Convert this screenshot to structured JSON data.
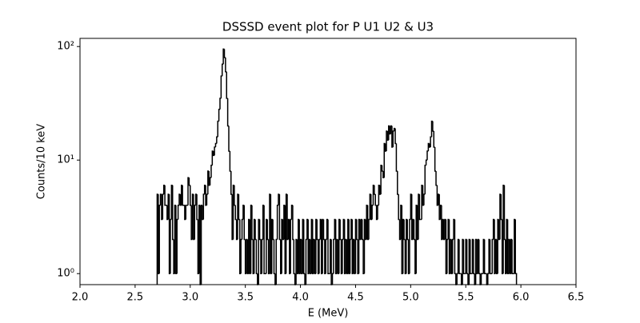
{
  "chart_data": {
    "type": "histogram",
    "title": "DSSSD event plot for P U1 U2 & U3",
    "xlabel": "E (MeV)",
    "ylabel": "Counts/10 keV",
    "color": "#000000",
    "log_y": true,
    "xlim": [
      2.0,
      6.5
    ],
    "xticks": [
      {
        "value": 2,
        "label": "2.0"
      },
      2.5,
      {
        "value": 3,
        "label": "3.0"
      },
      3.5,
      {
        "value": 4,
        "label": "4.0"
      },
      4.5,
      {
        "value": 5,
        "label": "5.0"
      },
      5.5,
      {
        "value": 6,
        "label": "6.0"
      },
      6.5
    ],
    "ylim": [
      0.8,
      118
    ],
    "yticks": [
      {
        "value": 1,
        "label": "10⁰"
      },
      {
        "value": 10,
        "label": "10¹"
      },
      {
        "value": 100,
        "label": "10²"
      }
    ],
    "bins": [
      2.7,
      2.71,
      2.72,
      2.73,
      2.74,
      2.75,
      2.76,
      2.77,
      2.78,
      2.79,
      2.8,
      2.81,
      2.82,
      2.83,
      2.84,
      2.85,
      2.86,
      2.87,
      2.88,
      2.89,
      2.9,
      2.91,
      2.92,
      2.93,
      2.94,
      2.95,
      2.96,
      2.97,
      2.98,
      2.99,
      3,
      3.01,
      3.02,
      3.03,
      3.04,
      3.05,
      3.06,
      3.07,
      3.08,
      3.09,
      3.1,
      3.11,
      3.12,
      3.13,
      3.14,
      3.15,
      3.16,
      3.17,
      3.18,
      3.19,
      3.2,
      3.21,
      3.22,
      3.23,
      3.24,
      3.25,
      3.26,
      3.27,
      3.28,
      3.29,
      3.3,
      3.31,
      3.32,
      3.33,
      3.34,
      3.35,
      3.36,
      3.37,
      3.38,
      3.39,
      3.4,
      3.41,
      3.42,
      3.43,
      3.44,
      3.45,
      3.46,
      3.47,
      3.48,
      3.49,
      3.5,
      3.51,
      3.52,
      3.53,
      3.54,
      3.55,
      3.56,
      3.57,
      3.58,
      3.59,
      3.6,
      3.61,
      3.62,
      3.63,
      3.64,
      3.65,
      3.66,
      3.67,
      3.68,
      3.69,
      3.7,
      3.71,
      3.72,
      3.73,
      3.74,
      3.75,
      3.76,
      3.77,
      3.78,
      3.79,
      3.8,
      3.81,
      3.82,
      3.83,
      3.84,
      3.85,
      3.86,
      3.87,
      3.88,
      3.89,
      3.9,
      3.91,
      3.92,
      3.93,
      3.94,
      3.95,
      3.96,
      3.97,
      3.98,
      3.99,
      4,
      4.01,
      4.02,
      4.03,
      4.04,
      4.05,
      4.06,
      4.07,
      4.08,
      4.09,
      4.1,
      4.11,
      4.12,
      4.13,
      4.14,
      4.15,
      4.16,
      4.17,
      4.18,
      4.19,
      4.2,
      4.21,
      4.22,
      4.23,
      4.24,
      4.25,
      4.26,
      4.27,
      4.28,
      4.29,
      4.3,
      4.31,
      4.32,
      4.33,
      4.34,
      4.35,
      4.36,
      4.37,
      4.38,
      4.39,
      4.4,
      4.41,
      4.42,
      4.43,
      4.44,
      4.45,
      4.46,
      4.47,
      4.48,
      4.49,
      4.5,
      4.51,
      4.52,
      4.53,
      4.54,
      4.55,
      4.56,
      4.57,
      4.58,
      4.59,
      4.6,
      4.61,
      4.62,
      4.63,
      4.64,
      4.65,
      4.66,
      4.67,
      4.68,
      4.69,
      4.7,
      4.71,
      4.72,
      4.73,
      4.74,
      4.75,
      4.76,
      4.77,
      4.78,
      4.79,
      4.8,
      4.81,
      4.82,
      4.83,
      4.84,
      4.85,
      4.86,
      4.87,
      4.88,
      4.89,
      4.9,
      4.91,
      4.92,
      4.93,
      4.94,
      4.95,
      4.96,
      4.97,
      4.98,
      4.99,
      5,
      5.01,
      5.02,
      5.03,
      5.04,
      5.05,
      5.06,
      5.07,
      5.08,
      5.09,
      5.1,
      5.11,
      5.12,
      5.13,
      5.14,
      5.15,
      5.16,
      5.17,
      5.18,
      5.19,
      5.2,
      5.21,
      5.22,
      5.23,
      5.24,
      5.25,
      5.26,
      5.27,
      5.28,
      5.29,
      5.3,
      5.31,
      5.32,
      5.33,
      5.34,
      5.35,
      5.36,
      5.37,
      5.38,
      5.39,
      5.4,
      5.41,
      5.42,
      5.43,
      5.44,
      5.45,
      5.46,
      5.47,
      5.48,
      5.49,
      5.5,
      5.51,
      5.52,
      5.53,
      5.54,
      5.55,
      5.56,
      5.57,
      5.58,
      5.59,
      5.6,
      5.61,
      5.62,
      5.63,
      5.64,
      5.65,
      5.66,
      5.67,
      5.68,
      5.69,
      5.7,
      5.71,
      5.72,
      5.73,
      5.74,
      5.75,
      5.76,
      5.77,
      5.78,
      5.79,
      5.8,
      5.81,
      5.82,
      5.83,
      5.84,
      5.85,
      5.86,
      5.87,
      5.88,
      5.89,
      5.9,
      5.91,
      5.92,
      5.93,
      5.94,
      5.95,
      5.96
    ],
    "values": [
      5,
      1,
      4,
      5,
      3,
      5,
      6,
      4,
      4,
      3,
      5,
      1,
      3,
      6,
      2,
      1,
      4,
      1,
      3,
      4,
      5,
      4,
      6,
      4,
      4,
      3,
      4,
      4,
      7,
      6,
      4,
      2,
      5,
      2,
      4,
      5,
      3,
      1,
      4,
      0,
      4,
      3,
      5,
      6,
      4,
      5,
      8,
      6,
      7,
      9,
      12,
      11,
      13,
      14,
      16,
      22,
      28,
      35,
      55,
      70,
      95,
      80,
      60,
      35,
      20,
      12,
      8,
      5,
      2,
      6,
      4,
      3,
      2,
      5,
      3,
      1,
      2,
      3,
      4,
      2,
      1,
      2,
      1,
      3,
      1,
      4,
      2,
      1,
      3,
      2,
      1,
      0,
      3,
      2,
      1,
      2,
      4,
      1,
      1,
      3,
      2,
      1,
      5,
      1,
      3,
      2,
      1,
      0,
      2,
      4,
      5,
      2,
      1,
      3,
      2,
      4,
      1,
      5,
      2,
      3,
      1,
      3,
      4,
      2,
      1,
      0,
      2,
      1,
      3,
      1,
      2,
      1,
      3,
      1,
      0,
      2,
      3,
      1,
      2,
      1,
      3,
      1,
      2,
      1,
      3,
      2,
      1,
      2,
      3,
      1,
      3,
      2,
      1,
      2,
      3,
      1,
      1,
      2,
      0,
      1,
      2,
      3,
      1,
      2,
      1,
      3,
      2,
      1,
      2,
      3,
      1,
      2,
      1,
      3,
      1,
      2,
      3,
      1,
      2,
      1,
      3,
      2,
      1,
      3,
      2,
      3,
      2,
      1,
      3,
      2,
      4,
      2,
      3,
      5,
      3,
      4,
      6,
      5,
      4,
      3,
      4,
      6,
      5,
      9,
      8,
      7,
      14,
      12,
      18,
      15,
      20,
      17,
      20,
      13,
      18,
      19,
      14,
      8,
      5,
      3,
      2,
      4,
      1,
      3,
      2,
      1,
      3,
      2,
      1,
      3,
      5,
      2,
      3,
      2,
      1,
      4,
      2,
      5,
      3,
      3,
      6,
      4,
      5,
      9,
      10,
      12,
      14,
      13,
      16,
      22,
      18,
      13,
      8,
      6,
      4,
      5,
      3,
      4,
      2,
      3,
      2,
      3,
      1,
      2,
      3,
      1,
      2,
      1,
      2,
      3,
      1,
      0,
      1,
      2,
      1,
      1,
      0,
      2,
      1,
      1,
      2,
      1,
      0,
      2,
      1,
      1,
      2,
      1,
      0,
      2,
      1,
      2,
      1,
      0,
      1,
      1,
      2,
      1,
      1,
      0,
      1,
      2,
      1,
      1,
      2,
      3,
      1,
      2,
      1,
      3,
      2,
      5,
      3,
      1,
      6,
      2,
      1,
      3,
      1,
      2,
      1,
      2,
      1,
      1,
      3,
      1
    ]
  }
}
